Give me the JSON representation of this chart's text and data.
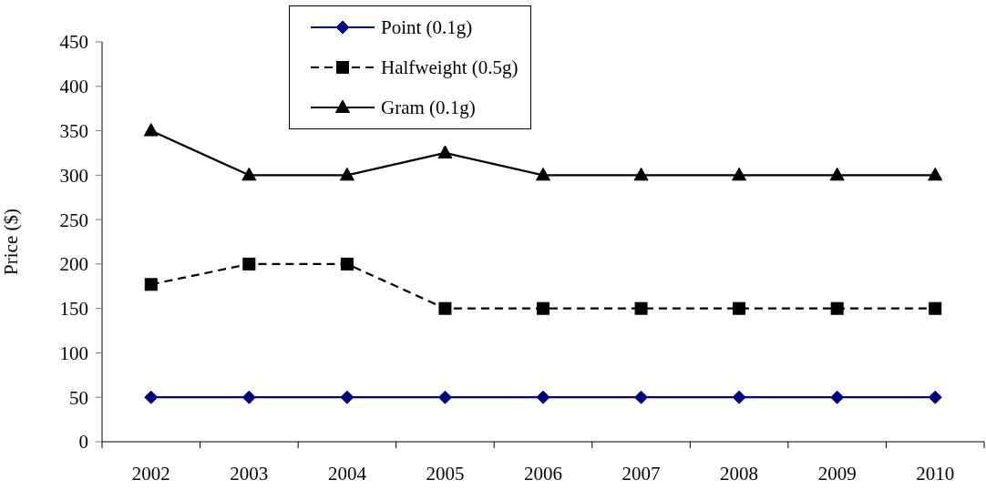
{
  "chart_data": {
    "type": "line",
    "ylabel": "Price ($)",
    "categories": [
      "2002",
      "2003",
      "2004",
      "2005",
      "2006",
      "2007",
      "2008",
      "2009",
      "2010"
    ],
    "series": [
      {
        "name": "Point (0.1g)",
        "color": "#000080",
        "marker": "diamond",
        "line_style": "solid",
        "values": [
          50,
          50,
          50,
          50,
          50,
          50,
          50,
          50,
          50
        ]
      },
      {
        "name": "Halfweight (0.5g)",
        "color": "#000000",
        "marker": "square",
        "line_style": "dashed",
        "values": [
          177,
          200,
          200,
          150,
          150,
          150,
          150,
          150,
          150
        ]
      },
      {
        "name": "Gram (0.1g)",
        "color": "#000000",
        "marker": "triangle",
        "line_style": "solid",
        "values": [
          350,
          300,
          300,
          325,
          300,
          300,
          300,
          300,
          300
        ]
      }
    ],
    "ylim": [
      0,
      450
    ],
    "yticks": [
      0,
      50,
      100,
      150,
      200,
      250,
      300,
      350,
      400,
      450
    ],
    "grid": false,
    "legend": "top"
  }
}
